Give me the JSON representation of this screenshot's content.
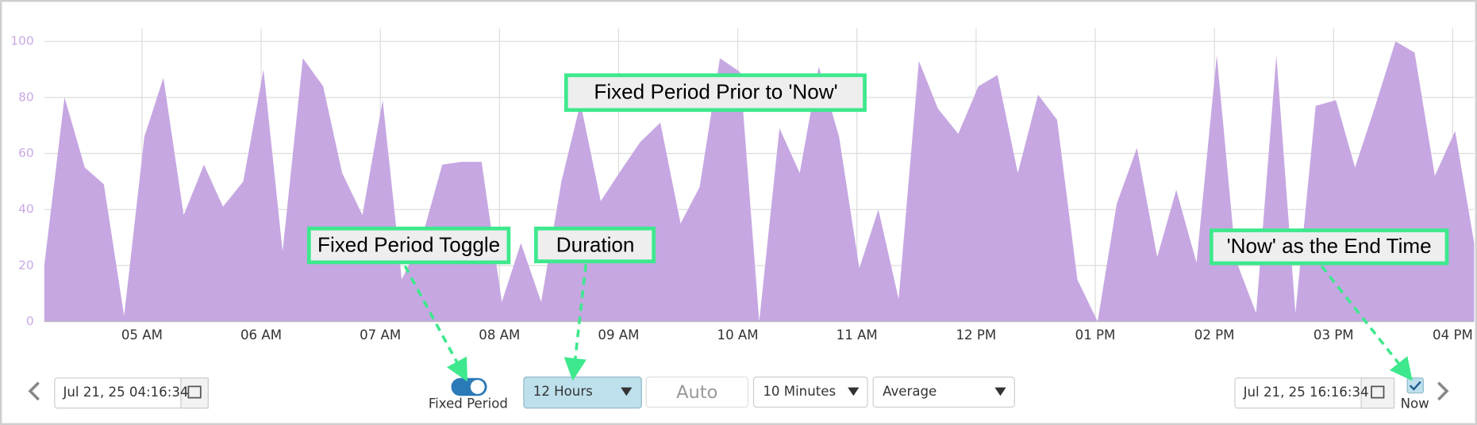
{
  "chart_data": {
    "type": "area",
    "x": [
      4.18,
      4.35,
      4.52,
      4.68,
      4.85,
      5.02,
      5.18,
      5.35,
      5.52,
      5.68,
      5.85,
      6.02,
      6.18,
      6.35,
      6.52,
      6.68,
      6.85,
      7.02,
      7.18,
      7.35,
      7.52,
      7.68,
      7.85,
      8.02,
      8.18,
      8.35,
      8.52,
      8.68,
      8.85,
      9.02,
      9.18,
      9.35,
      9.52,
      9.68,
      9.85,
      10.02,
      10.18,
      10.35,
      10.52,
      10.68,
      10.85,
      11.02,
      11.18,
      11.35,
      11.52,
      11.68,
      11.85,
      12.02,
      12.18,
      12.35,
      12.52,
      12.68,
      12.85,
      13.02,
      13.18,
      13.35,
      13.52,
      13.68,
      13.85,
      14.02,
      14.18,
      14.35,
      14.52,
      14.68,
      14.85,
      15.02,
      15.18,
      15.35,
      15.52,
      15.68,
      15.85,
      16.02,
      16.18
    ],
    "values": [
      20,
      80,
      55,
      49,
      2,
      66,
      87,
      38,
      56,
      41,
      50,
      90,
      25,
      94,
      84,
      53,
      38,
      79,
      15,
      30,
      56,
      57,
      57,
      7,
      28,
      7,
      50,
      78,
      43,
      54,
      64,
      71,
      35,
      48,
      94,
      89,
      0,
      69,
      53,
      91,
      66,
      19,
      40,
      8,
      93,
      76,
      67,
      84,
      88,
      53,
      81,
      72,
      15,
      0,
      42,
      62,
      23,
      47,
      21,
      95,
      22,
      3,
      95,
      3,
      77,
      79,
      55,
      77,
      100,
      96,
      52,
      68,
      28
    ],
    "color": "#c6a7e2",
    "xlim": [
      4.18,
      16.18
    ],
    "ylim": [
      0,
      100
    ],
    "yticks": [
      0,
      20,
      40,
      60,
      80,
      100
    ],
    "xticks": [
      {
        "value": 5,
        "label": "05 AM"
      },
      {
        "value": 6,
        "label": "06 AM"
      },
      {
        "value": 7,
        "label": "07 AM"
      },
      {
        "value": 8,
        "label": "08 AM"
      },
      {
        "value": 9,
        "label": "09 AM"
      },
      {
        "value": 10,
        "label": "10 AM"
      },
      {
        "value": 11,
        "label": "11 AM"
      },
      {
        "value": 12,
        "label": "12 PM"
      },
      {
        "value": 13,
        "label": "01 PM"
      },
      {
        "value": 14,
        "label": "02 PM"
      },
      {
        "value": 15,
        "label": "03 PM"
      },
      {
        "value": 16,
        "label": "04 PM"
      }
    ],
    "grid": true
  },
  "annotations": [
    "Fixed Period Prior to 'Now'",
    "Fixed Period Toggle",
    "Duration",
    "'Now' as the End Time"
  ],
  "controls": {
    "start_time": "Jul 21, 25 04:16:34",
    "toggle_label": "Fixed Period",
    "duration": "12 Hours",
    "auto": "Auto",
    "interval": "10 Minutes",
    "aggregate": "Average",
    "end_time": "Jul 21, 25 16:16:34",
    "now_label": "Now"
  }
}
